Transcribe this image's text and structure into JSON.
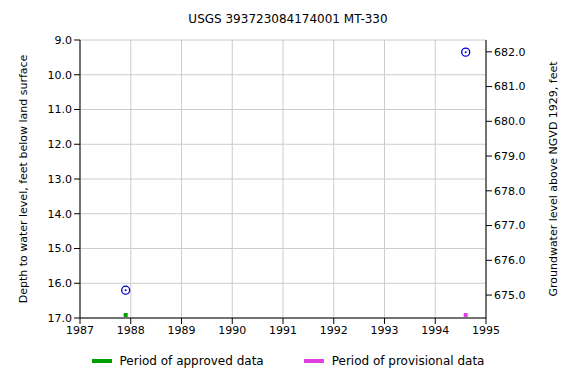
{
  "chart_data": {
    "type": "scatter",
    "title": "USGS 393723084174001 MT-330",
    "x_label": "",
    "y_label": "Depth to water level, feet below land surface",
    "y2_label": "Groundwater level above NGVD 1929, feet",
    "x": [
      1987.9,
      1994.6
    ],
    "values": [
      16.2,
      9.35
    ],
    "color": "#0000cc",
    "marker": "circle",
    "series": [
      {
        "name": "Period of approved data",
        "color": "#00a000",
        "marker": "square",
        "values": [
          17,
          null
        ]
      },
      {
        "name": "Period of provisional data",
        "color": "#e040e0",
        "marker": "square",
        "values": [
          null,
          17
        ]
      }
    ],
    "xlim": [
      1987,
      1995
    ],
    "xticks": [
      1987,
      1988,
      1989,
      1990,
      1991,
      1992,
      1993,
      1994,
      1995
    ],
    "ylim": [
      9,
      17
    ],
    "yticks": [
      {
        "value": 9,
        "label": "9.0"
      },
      {
        "value": 10,
        "label": "10.0"
      },
      {
        "value": 11,
        "label": "11.0"
      },
      {
        "value": 12,
        "label": "12.0"
      },
      {
        "value": 13,
        "label": "13.0"
      },
      {
        "value": 14,
        "label": "14.0"
      },
      {
        "value": 15,
        "label": "15.0"
      },
      {
        "value": 16,
        "label": "16.0"
      },
      {
        "value": 17,
        "label": "17.0"
      }
    ],
    "y2lim": [
      674.34,
      682.34
    ],
    "y2ticks": [
      {
        "value": 675,
        "label": "675.0"
      },
      {
        "value": 676,
        "label": "676.0"
      },
      {
        "value": 677,
        "label": "677.0"
      },
      {
        "value": 678,
        "label": "678.0"
      },
      {
        "value": 679,
        "label": "679.0"
      },
      {
        "value": 680,
        "label": "680.0"
      },
      {
        "value": 681,
        "label": "681.0"
      },
      {
        "value": 682,
        "label": "682.0"
      }
    ],
    "grid": true
  }
}
